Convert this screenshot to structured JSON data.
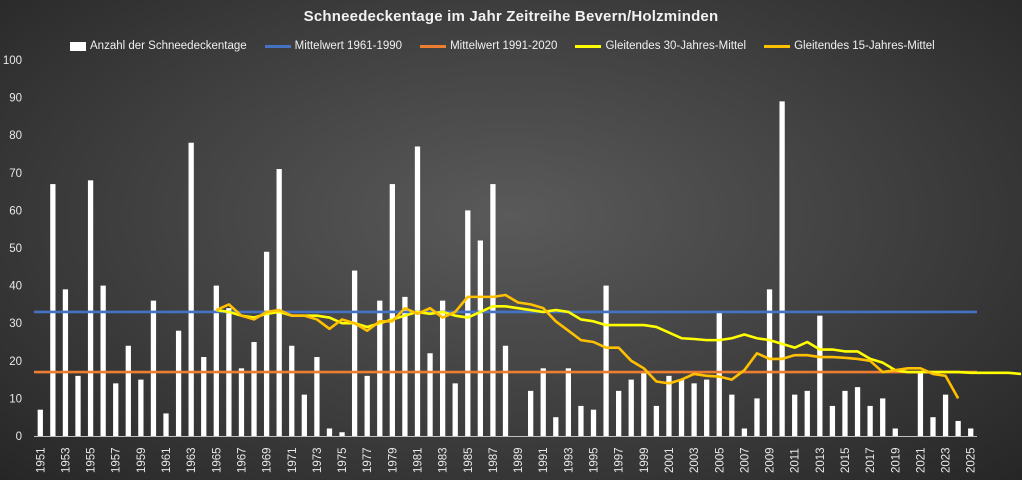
{
  "chart_data": {
    "type": "bar",
    "title": "Schneedeckentage im Jahr Zeitreihe Bevern/Holzminden",
    "xlabel": "",
    "ylabel": "",
    "ylim": [
      0,
      100
    ],
    "yticks": [
      0,
      10,
      20,
      30,
      40,
      50,
      60,
      70,
      80,
      90,
      100
    ],
    "x_start_year": 1951,
    "x_end_year": 2025,
    "x_tick_labels": [
      "1951",
      "1953",
      "1955",
      "1957",
      "1959",
      "1961",
      "1963",
      "1965",
      "1967",
      "1969",
      "1971",
      "1973",
      "1975",
      "1977",
      "1979",
      "1981",
      "1983",
      "1985",
      "1987",
      "1989",
      "1991",
      "1993",
      "1995",
      "1997",
      "1999",
      "2001",
      "2003",
      "2005",
      "2007",
      "2009",
      "2011",
      "2013",
      "2015",
      "2017",
      "2019",
      "2021",
      "2023",
      "2025"
    ],
    "bars": {
      "name": "Anzahl der Schneedeckentage",
      "color": "#ffffff",
      "values": [
        7,
        67,
        39,
        16,
        68,
        40,
        14,
        24,
        15,
        36,
        6,
        28,
        78,
        21,
        40,
        34,
        18,
        25,
        49,
        71,
        24,
        11,
        21,
        2,
        1,
        44,
        16,
        36,
        67,
        37,
        77,
        22,
        36,
        14,
        60,
        52,
        67,
        24,
        0,
        12,
        18,
        5,
        18,
        8,
        7,
        40,
        12,
        15,
        17,
        8,
        16,
        15,
        14,
        15,
        33,
        11,
        2,
        10,
        39,
        89,
        11,
        12,
        32,
        8,
        12,
        13,
        8,
        10,
        2,
        0,
        17,
        5,
        11,
        4,
        2
      ]
    },
    "series": [
      {
        "name": "Mittelwert 1961-1990",
        "color": "#4472c4",
        "type": "hline",
        "value": 33
      },
      {
        "name": "Mittelwert 1991-2020",
        "color": "#ed7d31",
        "type": "hline",
        "value": 17
      },
      {
        "name": "Gleitendes 30-Jahres-Mittel",
        "color": "#ffff00",
        "type": "line",
        "start_year": 1965,
        "values": [
          33.5,
          33,
          32,
          31.5,
          32.5,
          33,
          32,
          32,
          32,
          31.5,
          30,
          30,
          29,
          30,
          31,
          32,
          33,
          32.5,
          33,
          32,
          31.5,
          33,
          34.5,
          34.5,
          34,
          33.5,
          33,
          33.5,
          33,
          31,
          30.5,
          29.5,
          29.5,
          29.5,
          29.5,
          29,
          27.5,
          26,
          25.8,
          25.5,
          25.5,
          26,
          27,
          26,
          25.5,
          24.5,
          23.5,
          25,
          23,
          23,
          22.5,
          22.5,
          20.5,
          19.5,
          17.5,
          17,
          17,
          17,
          17,
          17,
          16.8,
          16.8,
          16.8,
          16.8,
          16.5
        ]
      },
      {
        "name": "Gleitendes 15-Jahres-Mittel",
        "color": "#ffc000",
        "type": "line",
        "start_year": 1965,
        "values": [
          33.5,
          35,
          32,
          31,
          33,
          33.5,
          32,
          32,
          31,
          28.5,
          31,
          30,
          28,
          30.5,
          30.5,
          34,
          32.5,
          34,
          31.5,
          33,
          37,
          37,
          37,
          37.5,
          35.5,
          35,
          34,
          30.5,
          28,
          25.5,
          25,
          23.5,
          23.5,
          20,
          18,
          14.5,
          14,
          15,
          16.5,
          16,
          15.8,
          15,
          17.5,
          22,
          20.5,
          20.5,
          21.5,
          21.5,
          21,
          21,
          20.8,
          20.5,
          20,
          17,
          17.5,
          18,
          18,
          16.5,
          16,
          10
        ]
      }
    ]
  }
}
